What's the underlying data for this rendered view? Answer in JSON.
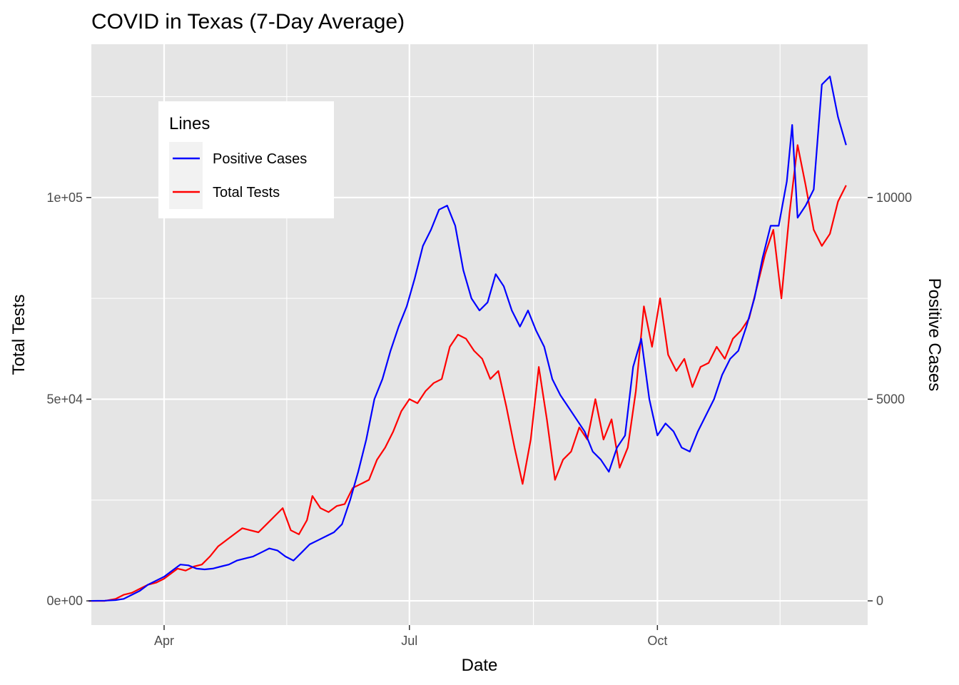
{
  "chart_data": {
    "type": "line",
    "title": "COVID in Texas (7-Day Average)",
    "xlabel": "Date",
    "ylabel": "Total Tests",
    "y2label": "Positive Cases",
    "x_ticks": [
      {
        "date": "2020-04-01",
        "label": "Apr"
      },
      {
        "date": "2020-07-01",
        "label": "Jul"
      },
      {
        "date": "2020-10-01",
        "label": "Oct"
      }
    ],
    "xlim": [
      "2020-03-05",
      "2020-12-18"
    ],
    "ylim": [
      -6000,
      138000
    ],
    "y_ticks": [
      {
        "value": 0,
        "label": "0e+00"
      },
      {
        "value": 50000,
        "label": "5e+04"
      },
      {
        "value": 100000,
        "label": "1e+05"
      }
    ],
    "y2_ticks": [
      {
        "value": 0,
        "label": "0"
      },
      {
        "value": 5000,
        "label": "5000"
      },
      {
        "value": 10000,
        "label": "10000"
      }
    ],
    "y2_scale": 0.1,
    "grid": true,
    "legend": {
      "title": "Lines",
      "placement": "top-left",
      "entries": [
        {
          "label": "Positive Cases",
          "color": "#0000ff"
        },
        {
          "label": "Total Tests",
          "color": "#ff0000"
        }
      ]
    },
    "series": [
      {
        "name": "Total Tests",
        "axis": "left",
        "color": "#ff0000",
        "points": [
          [
            "2020-03-04",
            0
          ],
          [
            "2020-03-10",
            0
          ],
          [
            "2020-03-14",
            500
          ],
          [
            "2020-03-17",
            1500
          ],
          [
            "2020-03-20",
            2000
          ],
          [
            "2020-03-23",
            3000
          ],
          [
            "2020-03-26",
            4000
          ],
          [
            "2020-03-29",
            4500
          ],
          [
            "2020-04-01",
            5500
          ],
          [
            "2020-04-04",
            7000
          ],
          [
            "2020-04-06",
            8000
          ],
          [
            "2020-04-09",
            7500
          ],
          [
            "2020-04-12",
            8500
          ],
          [
            "2020-04-15",
            9000
          ],
          [
            "2020-04-18",
            11000
          ],
          [
            "2020-04-21",
            13500
          ],
          [
            "2020-04-24",
            15000
          ],
          [
            "2020-04-27",
            16500
          ],
          [
            "2020-04-30",
            18000
          ],
          [
            "2020-05-03",
            17500
          ],
          [
            "2020-05-06",
            17000
          ],
          [
            "2020-05-09",
            19000
          ],
          [
            "2020-05-12",
            21000
          ],
          [
            "2020-05-15",
            23000
          ],
          [
            "2020-05-18",
            17500
          ],
          [
            "2020-05-21",
            16500
          ],
          [
            "2020-05-24",
            20000
          ],
          [
            "2020-05-26",
            26000
          ],
          [
            "2020-05-29",
            23000
          ],
          [
            "2020-06-01",
            22000
          ],
          [
            "2020-06-04",
            23500
          ],
          [
            "2020-06-07",
            24000
          ],
          [
            "2020-06-10",
            28000
          ],
          [
            "2020-06-13",
            29000
          ],
          [
            "2020-06-16",
            30000
          ],
          [
            "2020-06-19",
            35000
          ],
          [
            "2020-06-22",
            38000
          ],
          [
            "2020-06-25",
            42000
          ],
          [
            "2020-06-28",
            47000
          ],
          [
            "2020-07-01",
            50000
          ],
          [
            "2020-07-04",
            49000
          ],
          [
            "2020-07-07",
            52000
          ],
          [
            "2020-07-10",
            54000
          ],
          [
            "2020-07-13",
            55000
          ],
          [
            "2020-07-16",
            63000
          ],
          [
            "2020-07-19",
            66000
          ],
          [
            "2020-07-22",
            65000
          ],
          [
            "2020-07-25",
            62000
          ],
          [
            "2020-07-28",
            60000
          ],
          [
            "2020-07-31",
            55000
          ],
          [
            "2020-08-03",
            57000
          ],
          [
            "2020-08-06",
            48000
          ],
          [
            "2020-08-09",
            38000
          ],
          [
            "2020-08-12",
            29000
          ],
          [
            "2020-08-15",
            40000
          ],
          [
            "2020-08-18",
            58000
          ],
          [
            "2020-08-21",
            45000
          ],
          [
            "2020-08-24",
            30000
          ],
          [
            "2020-08-27",
            35000
          ],
          [
            "2020-08-30",
            37000
          ],
          [
            "2020-09-02",
            43000
          ],
          [
            "2020-09-05",
            40000
          ],
          [
            "2020-09-08",
            50000
          ],
          [
            "2020-09-11",
            40000
          ],
          [
            "2020-09-14",
            45000
          ],
          [
            "2020-09-17",
            33000
          ],
          [
            "2020-09-20",
            38000
          ],
          [
            "2020-09-23",
            52000
          ],
          [
            "2020-09-26",
            73000
          ],
          [
            "2020-09-29",
            63000
          ],
          [
            "2020-10-02",
            75000
          ],
          [
            "2020-10-05",
            61000
          ],
          [
            "2020-10-08",
            57000
          ],
          [
            "2020-10-11",
            60000
          ],
          [
            "2020-10-14",
            53000
          ],
          [
            "2020-10-17",
            58000
          ],
          [
            "2020-10-20",
            59000
          ],
          [
            "2020-10-23",
            63000
          ],
          [
            "2020-10-26",
            60000
          ],
          [
            "2020-10-29",
            65000
          ],
          [
            "2020-11-01",
            67000
          ],
          [
            "2020-11-04",
            70000
          ],
          [
            "2020-11-07",
            78000
          ],
          [
            "2020-11-10",
            86000
          ],
          [
            "2020-11-13",
            92000
          ],
          [
            "2020-11-16",
            75000
          ],
          [
            "2020-11-19",
            96000
          ],
          [
            "2020-11-22",
            113000
          ],
          [
            "2020-11-25",
            103000
          ],
          [
            "2020-11-28",
            92000
          ],
          [
            "2020-12-01",
            88000
          ],
          [
            "2020-12-04",
            91000
          ],
          [
            "2020-12-07",
            99000
          ],
          [
            "2020-12-10",
            103000
          ]
        ]
      },
      {
        "name": "Positive Cases",
        "axis": "right",
        "color": "#0000ff",
        "points": [
          [
            "2020-03-04",
            0
          ],
          [
            "2020-03-10",
            5
          ],
          [
            "2020-03-14",
            20
          ],
          [
            "2020-03-17",
            50
          ],
          [
            "2020-03-20",
            150
          ],
          [
            "2020-03-23",
            250
          ],
          [
            "2020-03-26",
            400
          ],
          [
            "2020-03-29",
            500
          ],
          [
            "2020-04-01",
            600
          ],
          [
            "2020-04-04",
            750
          ],
          [
            "2020-04-07",
            900
          ],
          [
            "2020-04-10",
            880
          ],
          [
            "2020-04-13",
            800
          ],
          [
            "2020-04-16",
            780
          ],
          [
            "2020-04-19",
            800
          ],
          [
            "2020-04-22",
            850
          ],
          [
            "2020-04-25",
            900
          ],
          [
            "2020-04-28",
            1000
          ],
          [
            "2020-05-01",
            1050
          ],
          [
            "2020-05-04",
            1100
          ],
          [
            "2020-05-07",
            1200
          ],
          [
            "2020-05-10",
            1300
          ],
          [
            "2020-05-13",
            1250
          ],
          [
            "2020-05-16",
            1100
          ],
          [
            "2020-05-19",
            1000
          ],
          [
            "2020-05-22",
            1200
          ],
          [
            "2020-05-25",
            1400
          ],
          [
            "2020-05-28",
            1500
          ],
          [
            "2020-05-31",
            1600
          ],
          [
            "2020-06-03",
            1700
          ],
          [
            "2020-06-06",
            1900
          ],
          [
            "2020-06-09",
            2500
          ],
          [
            "2020-06-12",
            3200
          ],
          [
            "2020-06-15",
            4000
          ],
          [
            "2020-06-18",
            5000
          ],
          [
            "2020-06-21",
            5500
          ],
          [
            "2020-06-24",
            6200
          ],
          [
            "2020-06-27",
            6800
          ],
          [
            "2020-06-30",
            7300
          ],
          [
            "2020-07-03",
            8000
          ],
          [
            "2020-07-06",
            8800
          ],
          [
            "2020-07-09",
            9200
          ],
          [
            "2020-07-12",
            9700
          ],
          [
            "2020-07-15",
            9800
          ],
          [
            "2020-07-18",
            9300
          ],
          [
            "2020-07-21",
            8200
          ],
          [
            "2020-07-24",
            7500
          ],
          [
            "2020-07-27",
            7200
          ],
          [
            "2020-07-30",
            7400
          ],
          [
            "2020-08-02",
            8100
          ],
          [
            "2020-08-05",
            7800
          ],
          [
            "2020-08-08",
            7200
          ],
          [
            "2020-08-11",
            6800
          ],
          [
            "2020-08-14",
            7200
          ],
          [
            "2020-08-17",
            6700
          ],
          [
            "2020-08-20",
            6300
          ],
          [
            "2020-08-23",
            5500
          ],
          [
            "2020-08-26",
            5100
          ],
          [
            "2020-08-29",
            4800
          ],
          [
            "2020-09-01",
            4500
          ],
          [
            "2020-09-04",
            4200
          ],
          [
            "2020-09-07",
            3700
          ],
          [
            "2020-09-10",
            3500
          ],
          [
            "2020-09-13",
            3200
          ],
          [
            "2020-09-16",
            3800
          ],
          [
            "2020-09-19",
            4100
          ],
          [
            "2020-09-22",
            5800
          ],
          [
            "2020-09-25",
            6500
          ],
          [
            "2020-09-28",
            5000
          ],
          [
            "2020-10-01",
            4100
          ],
          [
            "2020-10-04",
            4400
          ],
          [
            "2020-10-07",
            4200
          ],
          [
            "2020-10-10",
            3800
          ],
          [
            "2020-10-13",
            3700
          ],
          [
            "2020-10-16",
            4200
          ],
          [
            "2020-10-19",
            4600
          ],
          [
            "2020-10-22",
            5000
          ],
          [
            "2020-10-25",
            5600
          ],
          [
            "2020-10-28",
            6000
          ],
          [
            "2020-10-31",
            6200
          ],
          [
            "2020-11-03",
            6800
          ],
          [
            "2020-11-06",
            7500
          ],
          [
            "2020-11-09",
            8500
          ],
          [
            "2020-11-12",
            9300
          ],
          [
            "2020-11-15",
            9300
          ],
          [
            "2020-11-18",
            10400
          ],
          [
            "2020-11-20",
            11800
          ],
          [
            "2020-11-22",
            9500
          ],
          [
            "2020-11-25",
            9800
          ],
          [
            "2020-11-28",
            10200
          ],
          [
            "2020-12-01",
            12800
          ],
          [
            "2020-12-04",
            13000
          ],
          [
            "2020-12-07",
            12000
          ],
          [
            "2020-12-10",
            11300
          ]
        ]
      }
    ]
  }
}
